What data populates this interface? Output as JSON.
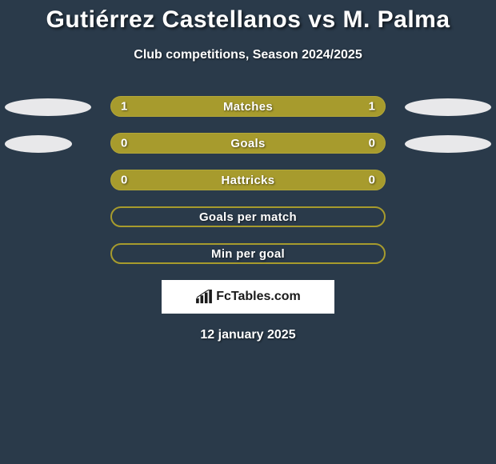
{
  "header": {
    "title": "Gutiérrez Castellanos vs M. Palma",
    "subtitle": "Club competitions, Season 2024/2025"
  },
  "colors": {
    "bar_fill": "#a79b2d",
    "bar_border": "#b2a638",
    "ellipse": "#e8e8ea",
    "background": "#2a3a4a",
    "text": "#ffffff"
  },
  "rows": [
    {
      "label": "Matches",
      "left_value": "1",
      "right_value": "1",
      "left_ellipse_width": 108,
      "right_ellipse_width": 108,
      "show_ellipses": true,
      "filled": true
    },
    {
      "label": "Goals",
      "left_value": "0",
      "right_value": "0",
      "left_ellipse_width": 84,
      "right_ellipse_width": 108,
      "show_ellipses": true,
      "filled": true
    },
    {
      "label": "Hattricks",
      "left_value": "0",
      "right_value": "0",
      "show_ellipses": false,
      "filled": true
    },
    {
      "label": "Goals per match",
      "left_value": "",
      "right_value": "",
      "show_ellipses": false,
      "filled": false
    },
    {
      "label": "Min per goal",
      "left_value": "",
      "right_value": "",
      "show_ellipses": false,
      "filled": false
    }
  ],
  "brand": {
    "text": "FcTables.com"
  },
  "footer": {
    "date": "12 january 2025"
  }
}
